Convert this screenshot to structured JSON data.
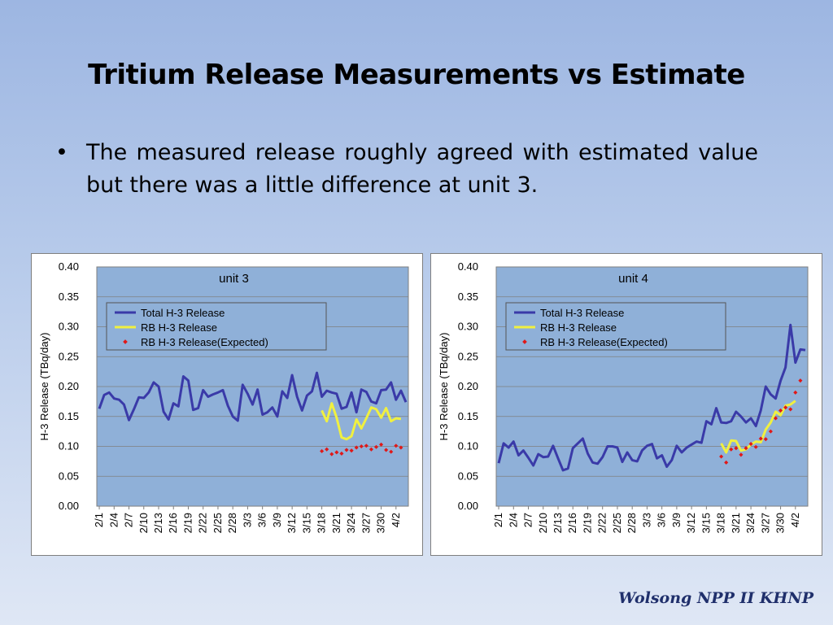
{
  "slide": {
    "title": "Tritium Release Measurements vs Estimate",
    "bullets": [
      "The measured release roughly agreed with estimated value but there was a little difference at unit 3."
    ],
    "bullet_symbol": "•",
    "footer": "Wolsong NPP II KHNP"
  },
  "chart_data": [
    {
      "type": "line",
      "title": "unit 3",
      "ylabel": "H-3  Release (TBq/day)",
      "ylim": [
        0,
        0.4
      ],
      "yticks": [
        "0.00",
        "0.05",
        "0.10",
        "0.15",
        "0.20",
        "0.25",
        "0.30",
        "0.35",
        "0.40"
      ],
      "x_start": "2/1",
      "x_count": 63,
      "tick_labels": [
        "2/1",
        "2/4",
        "2/7",
        "2/10",
        "2/13",
        "2/16",
        "2/19",
        "2/22",
        "2/25",
        "2/28",
        "3/3",
        "3/6",
        "3/9",
        "3/12",
        "3/15",
        "3/18",
        "3/21",
        "3/24",
        "3/27",
        "3/30",
        "4/2"
      ],
      "tick_step": 3,
      "legend_position": "top-left",
      "grid": "horizontal",
      "plot_bg": "#8fb0d8",
      "series": [
        {
          "name": "Total H-3  Release",
          "style": "line",
          "color": "#3a3aa8",
          "start_index": 0,
          "values": [
            0.163,
            0.186,
            0.19,
            0.18,
            0.178,
            0.17,
            0.144,
            0.162,
            0.182,
            0.181,
            0.19,
            0.207,
            0.2,
            0.158,
            0.145,
            0.172,
            0.167,
            0.217,
            0.21,
            0.161,
            0.164,
            0.194,
            0.183,
            0.187,
            0.19,
            0.194,
            0.168,
            0.15,
            0.143,
            0.203,
            0.188,
            0.17,
            0.195,
            0.153,
            0.157,
            0.165,
            0.15,
            0.192,
            0.181,
            0.219,
            0.183,
            0.16,
            0.185,
            0.192,
            0.223,
            0.183,
            0.193,
            0.19,
            0.188,
            0.163,
            0.166,
            0.19,
            0.157,
            0.195,
            0.191,
            0.175,
            0.172,
            0.194,
            0.195,
            0.207,
            0.178,
            0.193,
            0.174
          ]
        },
        {
          "name": "RB H-3  Release",
          "style": "line",
          "color": "#f0f040",
          "start_index": 45,
          "values": [
            0.16,
            0.142,
            0.172,
            0.148,
            0.115,
            0.112,
            0.117,
            0.145,
            0.13,
            0.147,
            0.165,
            0.162,
            0.148,
            0.164,
            0.142,
            0.147,
            0.146
          ]
        },
        {
          "name": "RB H-3  Release(Expected)",
          "style": "markers",
          "color": "#e01818",
          "start_index": 45,
          "values": [
            0.092,
            0.095,
            0.087,
            0.09,
            0.088,
            0.094,
            0.093,
            0.098,
            0.1,
            0.101,
            0.095,
            0.099,
            0.103,
            0.094,
            0.091,
            0.101,
            0.098
          ]
        }
      ]
    },
    {
      "type": "line",
      "title": "unit 4",
      "ylabel": "H-3  Release (TBq/day)",
      "ylim": [
        0,
        0.4
      ],
      "yticks": [
        "0.00",
        "0.05",
        "0.10",
        "0.15",
        "0.20",
        "0.25",
        "0.30",
        "0.35",
        "0.40"
      ],
      "x_start": "2/1",
      "x_count": 63,
      "tick_labels": [
        "2/1",
        "2/4",
        "2/7",
        "2/10",
        "2/13",
        "2/16",
        "2/19",
        "2/22",
        "2/25",
        "2/28",
        "3/3",
        "3/6",
        "3/9",
        "3/12",
        "3/15",
        "3/18",
        "3/21",
        "3/24",
        "3/27",
        "3/30",
        "4/2"
      ],
      "tick_step": 3,
      "legend_position": "top-left",
      "grid": "horizontal",
      "plot_bg": "#8fb0d8",
      "series": [
        {
          "name": "Total H-3  Release",
          "style": "line",
          "color": "#3a3aa8",
          "start_index": 0,
          "values": [
            0.072,
            0.105,
            0.098,
            0.108,
            0.085,
            0.093,
            0.081,
            0.068,
            0.087,
            0.082,
            0.083,
            0.101,
            0.08,
            0.06,
            0.063,
            0.097,
            0.105,
            0.113,
            0.088,
            0.073,
            0.071,
            0.082,
            0.1,
            0.1,
            0.098,
            0.074,
            0.09,
            0.077,
            0.075,
            0.093,
            0.101,
            0.104,
            0.08,
            0.085,
            0.066,
            0.077,
            0.101,
            0.09,
            0.098,
            0.103,
            0.108,
            0.106,
            0.142,
            0.137,
            0.164,
            0.14,
            0.139,
            0.142,
            0.158,
            0.15,
            0.14,
            0.147,
            0.134,
            0.16,
            0.2,
            0.187,
            0.18,
            0.21,
            0.232,
            0.303,
            0.24,
            0.262,
            0.261
          ]
        },
        {
          "name": "RB H-3  Release",
          "style": "line",
          "color": "#f0f040",
          "start_index": 45,
          "values": [
            0.105,
            0.09,
            0.11,
            0.109,
            0.093,
            0.095,
            0.103,
            0.108,
            0.107,
            0.128,
            0.14,
            0.158,
            0.152,
            0.168,
            0.17,
            0.176
          ]
        },
        {
          "name": "RB H-3  Release(Expected)",
          "style": "markers",
          "color": "#e01818",
          "start_index": 45,
          "values": [
            0.083,
            0.073,
            0.095,
            0.097,
            0.086,
            0.097,
            0.104,
            0.099,
            0.113,
            0.112,
            0.125,
            0.147,
            0.16,
            0.165,
            0.162,
            0.19,
            0.21
          ]
        }
      ]
    }
  ]
}
